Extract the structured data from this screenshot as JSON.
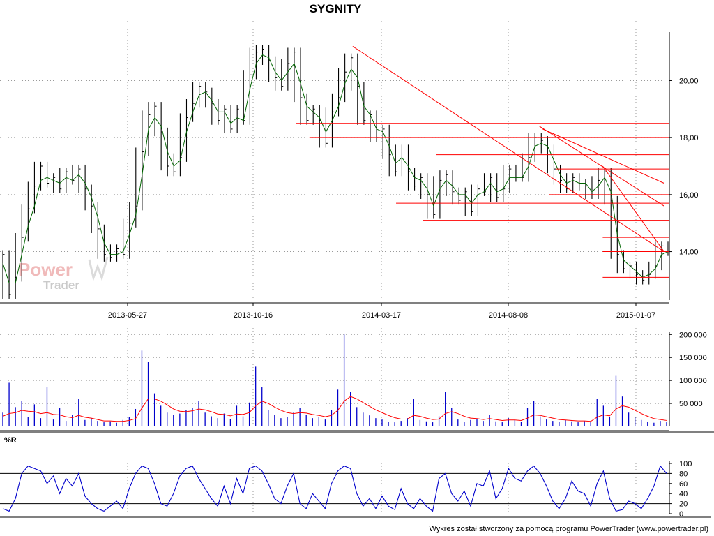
{
  "chart_data": [
    {
      "type": "line",
      "panel": "price",
      "title": "SYGNITY",
      "x_ticks": [
        "2013-05-27",
        "2013-10-16",
        "2014-03-17",
        "2014-08-08",
        "2015-01-07"
      ],
      "y_ticks": [
        "14,00",
        "16,00",
        "18,00",
        "20,00"
      ],
      "ylim": [
        12.3,
        21.7
      ],
      "grid": true,
      "series": [
        {
          "style": "ohlc",
          "color": "#000000",
          "values": [
            13.9,
            12.5,
            13.1,
            14.5,
            15.5,
            16.3,
            17.0,
            16.4,
            16.6,
            16.2,
            16.8,
            16.5,
            16.9,
            16.2,
            15.6,
            14.8,
            13.9,
            13.8,
            14.1,
            13.9,
            15.0,
            15.6,
            17.5,
            18.8,
            19.1,
            18.2,
            17.0,
            16.8,
            17.3,
            18.7,
            19.2,
            19.8,
            19.6,
            19.2,
            18.6,
            19.0,
            18.3,
            19.0,
            18.6,
            20.2,
            21.0,
            21.1,
            20.7,
            20.1,
            19.8,
            20.6,
            21.0,
            19.4,
            18.6,
            19.0,
            18.6,
            17.8,
            18.9,
            19.4,
            20.3,
            20.8,
            19.8,
            18.6,
            18.8,
            18.0,
            18.3,
            17.4,
            16.8,
            17.6,
            16.8,
            16.3,
            16.6,
            16.0,
            15.3,
            16.5,
            16.7,
            16.1,
            15.8,
            16.1,
            15.4,
            16.2,
            16.1,
            16.6,
            15.9,
            16.2,
            16.9,
            16.6,
            16.6,
            17.3,
            18.0,
            17.9,
            17.6,
            16.9,
            16.5,
            16.2,
            16.6,
            16.4,
            16.3,
            16.0,
            16.5,
            16.8,
            15.8,
            13.9,
            13.4,
            13.5,
            13.2,
            13.0,
            13.2,
            13.5,
            14.2,
            14.0
          ]
        },
        {
          "style": "line",
          "color": "#006400",
          "values": [
            13.6,
            12.9,
            12.9,
            13.9,
            14.9,
            15.6,
            16.5,
            16.6,
            16.5,
            16.4,
            16.6,
            16.5,
            16.7,
            16.4,
            15.9,
            15.2,
            14.3,
            13.9,
            13.9,
            14.0,
            14.6,
            15.3,
            16.7,
            18.3,
            18.7,
            18.4,
            17.5,
            17.0,
            17.2,
            18.2,
            18.9,
            19.5,
            19.6,
            19.3,
            18.9,
            18.9,
            18.5,
            18.7,
            18.6,
            19.7,
            20.6,
            20.9,
            20.8,
            20.3,
            20.0,
            20.3,
            20.6,
            19.9,
            19.1,
            18.9,
            18.7,
            18.2,
            18.6,
            19.1,
            19.9,
            20.4,
            20.1,
            19.1,
            18.8,
            18.3,
            18.2,
            17.7,
            17.1,
            17.3,
            17.0,
            16.6,
            16.5,
            16.2,
            15.6,
            16.2,
            16.5,
            16.3,
            16.0,
            16.0,
            15.7,
            16.0,
            16.1,
            16.4,
            16.1,
            16.2,
            16.6,
            16.6,
            16.6,
            17.0,
            17.7,
            17.8,
            17.7,
            17.2,
            16.7,
            16.4,
            16.5,
            16.4,
            16.4,
            16.1,
            16.3,
            16.6,
            16.1,
            14.6,
            13.7,
            13.5,
            13.3,
            13.1,
            13.2,
            13.4,
            13.9,
            14.0
          ]
        }
      ],
      "trend_lines": [
        {
          "color": "#ff0000",
          "x": [
            0.525,
            0.992
          ],
          "y": [
            21.2,
            14.0
          ]
        },
        {
          "color": "#ff0000",
          "x": [
            0.805,
            0.992
          ],
          "y": [
            18.4,
            15.6
          ]
        },
        {
          "color": "#ff0000",
          "x": [
            0.81,
            0.992
          ],
          "y": [
            18.3,
            16.4
          ]
        },
        {
          "color": "#ff0000",
          "x": [
            0.9,
            0.992
          ],
          "y": [
            17.0,
            14.0
          ]
        }
      ],
      "horizontal_levels": [
        {
          "color": "#ff0000",
          "y": 18.5,
          "x": [
            0.44,
            1.0
          ]
        },
        {
          "color": "#ff0000",
          "y": 18.0,
          "x": [
            0.46,
            1.0
          ]
        },
        {
          "color": "#ff0000",
          "y": 17.4,
          "x": [
            0.65,
            1.0
          ]
        },
        {
          "color": "#ff0000",
          "y": 16.9,
          "x": [
            0.83,
            1.0
          ]
        },
        {
          "color": "#ff0000",
          "y": 16.0,
          "x": [
            0.82,
            1.0
          ]
        },
        {
          "color": "#ff0000",
          "y": 15.7,
          "x": [
            0.59,
            1.0
          ]
        },
        {
          "color": "#ff0000",
          "y": 15.1,
          "x": [
            0.63,
            1.0
          ]
        },
        {
          "color": "#ff0000",
          "y": 14.5,
          "x": [
            0.9,
            1.0
          ]
        },
        {
          "color": "#ff0000",
          "y": 14.0,
          "x": [
            0.9,
            1.0
          ]
        },
        {
          "color": "#ff0000",
          "y": 13.1,
          "x": [
            0.9,
            1.0
          ]
        }
      ]
    },
    {
      "type": "bar",
      "panel": "volume",
      "y_ticks": [
        "50 000",
        "100 000",
        "150 000",
        "200 000"
      ],
      "ylim": [
        0,
        205000
      ],
      "grid": true,
      "series": [
        {
          "style": "bar",
          "color": "#0000cc",
          "values": [
            30000,
            95000,
            42000,
            55000,
            20000,
            48000,
            18000,
            85000,
            15000,
            40000,
            12000,
            25000,
            60000,
            14000,
            18000,
            12000,
            9000,
            11000,
            8000,
            14000,
            20000,
            38000,
            165000,
            140000,
            72000,
            45000,
            30000,
            25000,
            28000,
            35000,
            40000,
            55000,
            30000,
            22000,
            18000,
            28000,
            16000,
            45000,
            22000,
            52000,
            130000,
            85000,
            35000,
            25000,
            18000,
            20000,
            30000,
            40000,
            25000,
            18000,
            20000,
            15000,
            35000,
            80000,
            200000,
            75000,
            42000,
            30000,
            24000,
            18000,
            15000,
            10000,
            9000,
            12000,
            18000,
            60000,
            14000,
            11000,
            9000,
            22000,
            75000,
            40000,
            15000,
            10000,
            14000,
            16000,
            12000,
            25000,
            11000,
            9000,
            18000,
            14000,
            10000,
            40000,
            55000,
            22000,
            15000,
            12000,
            10000,
            14000,
            11000,
            9000,
            12000,
            10000,
            60000,
            45000,
            20000,
            110000,
            65000,
            30000,
            20000,
            14000,
            10000,
            8000,
            12000,
            9000
          ]
        },
        {
          "style": "line",
          "color": "#ff0000",
          "values": [
            22000,
            28000,
            30000,
            35000,
            33000,
            32000,
            28000,
            30000,
            26000,
            25000,
            21000,
            19000,
            24000,
            20000,
            18000,
            15000,
            12000,
            12000,
            11000,
            11000,
            13000,
            17000,
            40000,
            60000,
            60000,
            55000,
            47000,
            38000,
            33000,
            32000,
            34000,
            38000,
            36000,
            32000,
            27000,
            26000,
            23000,
            27000,
            26000,
            30000,
            45000,
            55000,
            50000,
            42000,
            35000,
            30000,
            28000,
            30000,
            29000,
            26000,
            24000,
            21000,
            24000,
            35000,
            55000,
            65000,
            60000,
            52000,
            44000,
            36000,
            30000,
            24000,
            19000,
            16000,
            16000,
            24000,
            22000,
            18000,
            15000,
            16000,
            28000,
            32000,
            28000,
            22000,
            18000,
            17000,
            15000,
            17000,
            15000,
            13000,
            14000,
            14000,
            13000,
            18000,
            25000,
            24000,
            21000,
            18000,
            15000,
            14000,
            13000,
            12000,
            12000,
            11000,
            20000,
            25000,
            23000,
            38000,
            45000,
            42000,
            35000,
            28000,
            22000,
            17000,
            15000,
            13000
          ]
        }
      ]
    },
    {
      "type": "line",
      "panel": "williams-r",
      "label": "%R",
      "y_ticks": [
        "0",
        "20",
        "40",
        "60",
        "80",
        "100"
      ],
      "ylim": [
        0,
        100
      ],
      "reference_lines": [
        20,
        80
      ],
      "series": [
        {
          "style": "line",
          "color": "#0000cc",
          "values": [
            10,
            5,
            30,
            80,
            95,
            90,
            85,
            60,
            75,
            40,
            70,
            55,
            80,
            35,
            20,
            10,
            5,
            15,
            25,
            10,
            50,
            80,
            95,
            90,
            60,
            20,
            15,
            40,
            75,
            90,
            95,
            70,
            50,
            30,
            15,
            55,
            20,
            70,
            40,
            90,
            95,
            85,
            60,
            30,
            20,
            55,
            80,
            20,
            10,
            40,
            25,
            10,
            60,
            85,
            95,
            90,
            40,
            15,
            30,
            10,
            35,
            15,
            8,
            50,
            20,
            10,
            30,
            15,
            5,
            70,
            80,
            40,
            25,
            45,
            15,
            60,
            55,
            85,
            30,
            50,
            90,
            70,
            65,
            85,
            95,
            80,
            55,
            25,
            10,
            30,
            65,
            45,
            40,
            15,
            60,
            85,
            30,
            5,
            8,
            25,
            20,
            10,
            30,
            55,
            95,
            80
          ]
        }
      ]
    }
  ],
  "footer": {
    "credit": "Wykres został stworzony za pomocą programu PowerTrader (www.powertrader.pl)"
  },
  "logo": {
    "word1": "Power",
    "word2": "Trader"
  }
}
